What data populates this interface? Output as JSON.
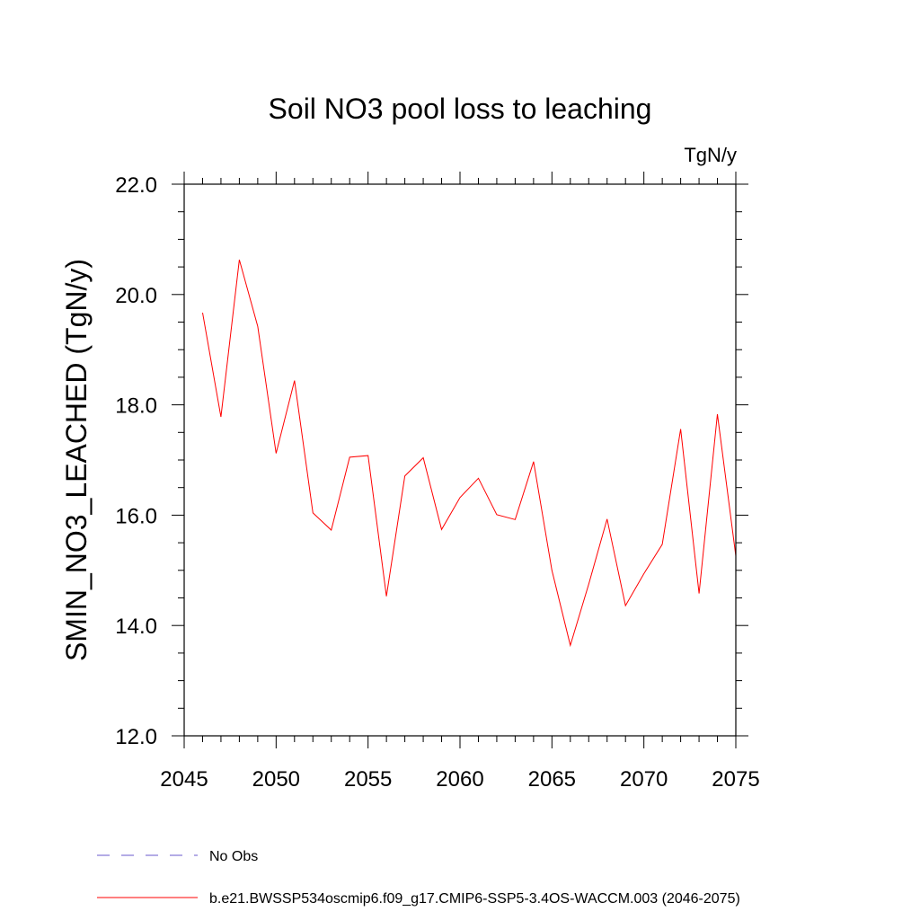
{
  "chart_data": {
    "type": "line",
    "title": "Soil NO3 pool loss to leaching",
    "units": "TgN/y",
    "xlabel": "",
    "ylabel": "SMIN_NO3_LEACHED  (TgN/y)",
    "xlim": [
      2045,
      2075
    ],
    "ylim": [
      12.0,
      22.0
    ],
    "x_ticks": [
      2045,
      2050,
      2055,
      2060,
      2065,
      2070,
      2075
    ],
    "x_tick_labels": [
      "2045",
      "2050",
      "2055",
      "2060",
      "2065",
      "2070",
      "2075"
    ],
    "y_ticks": [
      12.0,
      14.0,
      16.0,
      18.0,
      20.0,
      22.0
    ],
    "y_tick_labels": [
      "12.0",
      "14.0",
      "16.0",
      "18.0",
      "20.0",
      "22.0"
    ],
    "grid": false,
    "legend_position": "bottom",
    "series": [
      {
        "name": "b.e21.BWSSP534oscmip6.f09_g17.CMIP6-SSP5-3.4OS-WACCM.003 (2046-2075)",
        "color": "#ff0000",
        "style": "solid",
        "x": [
          2046,
          2047,
          2048,
          2049,
          2050,
          2051,
          2052,
          2053,
          2054,
          2055,
          2056,
          2057,
          2058,
          2059,
          2060,
          2061,
          2062,
          2063,
          2064,
          2065,
          2066,
          2067,
          2068,
          2069,
          2070,
          2071,
          2072,
          2073,
          2074,
          2075
        ],
        "y": [
          19.67,
          17.78,
          20.63,
          19.42,
          17.12,
          18.44,
          16.04,
          15.73,
          17.05,
          17.08,
          14.53,
          16.71,
          17.04,
          15.74,
          16.32,
          16.67,
          16.01,
          15.92,
          16.97,
          15.0,
          13.64,
          14.75,
          15.93,
          14.36,
          14.94,
          15.47,
          17.56,
          14.58,
          17.83,
          15.26
        ]
      }
    ],
    "legend": [
      {
        "label": "No Obs",
        "color": "#6a5acd",
        "style": "dashed"
      },
      {
        "label": "b.e21.BWSSP534oscmip6.f09_g17.CMIP6-SSP5-3.4OS-WACCM.003 (2046-2075)",
        "color": "#ff0000",
        "style": "solid"
      }
    ]
  }
}
